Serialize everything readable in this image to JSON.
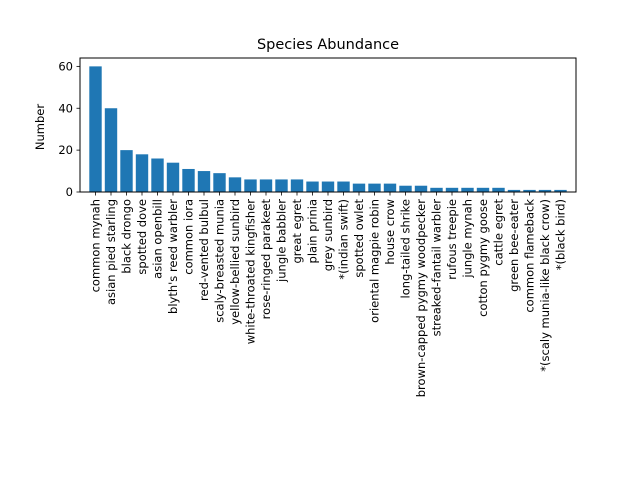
{
  "chart_data": {
    "type": "bar",
    "title": "Species Abundance",
    "xlabel": "",
    "ylabel": "Number",
    "ylim": [
      0,
      64
    ],
    "yticks": [
      0,
      20,
      40,
      60
    ],
    "grid": false,
    "bar_color": "#1f77b4",
    "categories": [
      "common mynah",
      "asian pied starling",
      "black drongo",
      "spotted dove",
      "asian openbill",
      "blyth's reed warbler",
      "common iora",
      "red-vented bulbul",
      "scaly-breasted munia",
      "yellow-bellied sunbird",
      "white-throated kingfisher",
      "rose-ringed parakeet",
      "jungle babbler",
      "great egret",
      "plain prinia",
      "grey sunbird",
      "*(indian swift)",
      "spotted owlet",
      "oriental magpie robin",
      "house crow",
      "long-tailed shrike",
      "brown-capped pygmy woodpecker",
      "streaked-fantail warbler",
      "rufous treepie",
      "jungle mynah",
      "cotton pygmy goose",
      "cattle egret",
      "green bee-eater",
      "common flameback",
      "*(scaly munia-like black crow)",
      "*(black bird)"
    ],
    "values": [
      60,
      40,
      20,
      18,
      16,
      14,
      11,
      10,
      9,
      7,
      6,
      6,
      6,
      6,
      5,
      5,
      5,
      4,
      4,
      4,
      3,
      3,
      2,
      2,
      2,
      2,
      2,
      1,
      1,
      1,
      1
    ]
  }
}
